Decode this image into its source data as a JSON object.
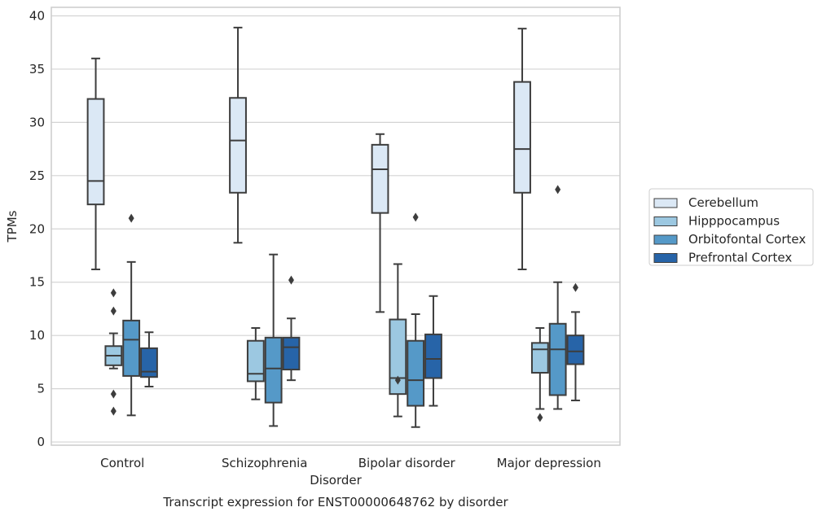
{
  "chart_data": {
    "type": "box",
    "caption": "Transcript expression for ENST00000648762 by disorder",
    "xlabel": "Disorder",
    "ylabel": "TPMs",
    "ylim": [
      -0.3,
      40.8
    ],
    "yticks": [
      0,
      5,
      10,
      15,
      20,
      25,
      30,
      35,
      40
    ],
    "grid": "horizontal",
    "legend_position": "right",
    "categories": [
      "Control",
      "Schizophrenia",
      "Bipolar disorder",
      "Major depression"
    ],
    "series": [
      {
        "name": "Cerebellum",
        "color": "#dbe8f5",
        "boxes": [
          {
            "whisker_low": 16.2,
            "q1": 22.3,
            "median": 24.5,
            "q3": 32.2,
            "whisker_high": 36.0,
            "outliers": []
          },
          {
            "whisker_low": 18.7,
            "q1": 23.4,
            "median": 28.3,
            "q3": 32.3,
            "whisker_high": 38.9,
            "outliers": []
          },
          {
            "whisker_low": 12.2,
            "q1": 21.5,
            "median": 25.6,
            "q3": 27.9,
            "whisker_high": 28.9,
            "outliers": []
          },
          {
            "whisker_low": 16.2,
            "q1": 23.4,
            "median": 27.5,
            "q3": 33.8,
            "whisker_high": 38.8,
            "outliers": []
          }
        ]
      },
      {
        "name": "Hipppocampus",
        "color": "#9cc8e1",
        "boxes": [
          {
            "whisker_low": 6.9,
            "q1": 7.2,
            "median": 8.1,
            "q3": 9.0,
            "whisker_high": 10.2,
            "outliers": [
              14.0,
              12.3,
              4.5,
              2.9
            ]
          },
          {
            "whisker_low": 4.0,
            "q1": 5.7,
            "median": 6.4,
            "q3": 9.5,
            "whisker_high": 10.7,
            "outliers": []
          },
          {
            "whisker_low": 2.4,
            "q1": 4.5,
            "median": 6.0,
            "q3": 11.5,
            "whisker_high": 16.7,
            "outliers": [
              5.8
            ]
          },
          {
            "whisker_low": 3.1,
            "q1": 6.5,
            "median": 8.7,
            "q3": 9.3,
            "whisker_high": 10.7,
            "outliers": [
              2.3
            ]
          }
        ]
      },
      {
        "name": "Orbitofontal Cortex",
        "color": "#5599c8",
        "boxes": [
          {
            "whisker_low": 2.5,
            "q1": 6.2,
            "median": 9.6,
            "q3": 11.4,
            "whisker_high": 16.9,
            "outliers": [
              21.0
            ]
          },
          {
            "whisker_low": 1.5,
            "q1": 3.7,
            "median": 6.9,
            "q3": 9.8,
            "whisker_high": 17.6,
            "outliers": []
          },
          {
            "whisker_low": 1.4,
            "q1": 3.4,
            "median": 5.8,
            "q3": 9.5,
            "whisker_high": 12.0,
            "outliers": [
              21.1
            ]
          },
          {
            "whisker_low": 3.1,
            "q1": 4.4,
            "median": 8.7,
            "q3": 11.1,
            "whisker_high": 15.0,
            "outliers": [
              23.7
            ]
          }
        ]
      },
      {
        "name": "Prefrontal Cortex",
        "color": "#2764a8",
        "boxes": [
          {
            "whisker_low": 5.2,
            "q1": 6.1,
            "median": 6.6,
            "q3": 8.8,
            "whisker_high": 10.3,
            "outliers": []
          },
          {
            "whisker_low": 5.8,
            "q1": 6.8,
            "median": 8.9,
            "q3": 9.8,
            "whisker_high": 11.6,
            "outliers": [
              15.2
            ]
          },
          {
            "whisker_low": 3.4,
            "q1": 6.0,
            "median": 7.8,
            "q3": 10.1,
            "whisker_high": 13.7,
            "outliers": []
          },
          {
            "whisker_low": 3.9,
            "q1": 7.3,
            "median": 8.5,
            "q3": 10.0,
            "whisker_high": 12.2,
            "outliers": [
              14.5
            ]
          }
        ]
      }
    ]
  }
}
